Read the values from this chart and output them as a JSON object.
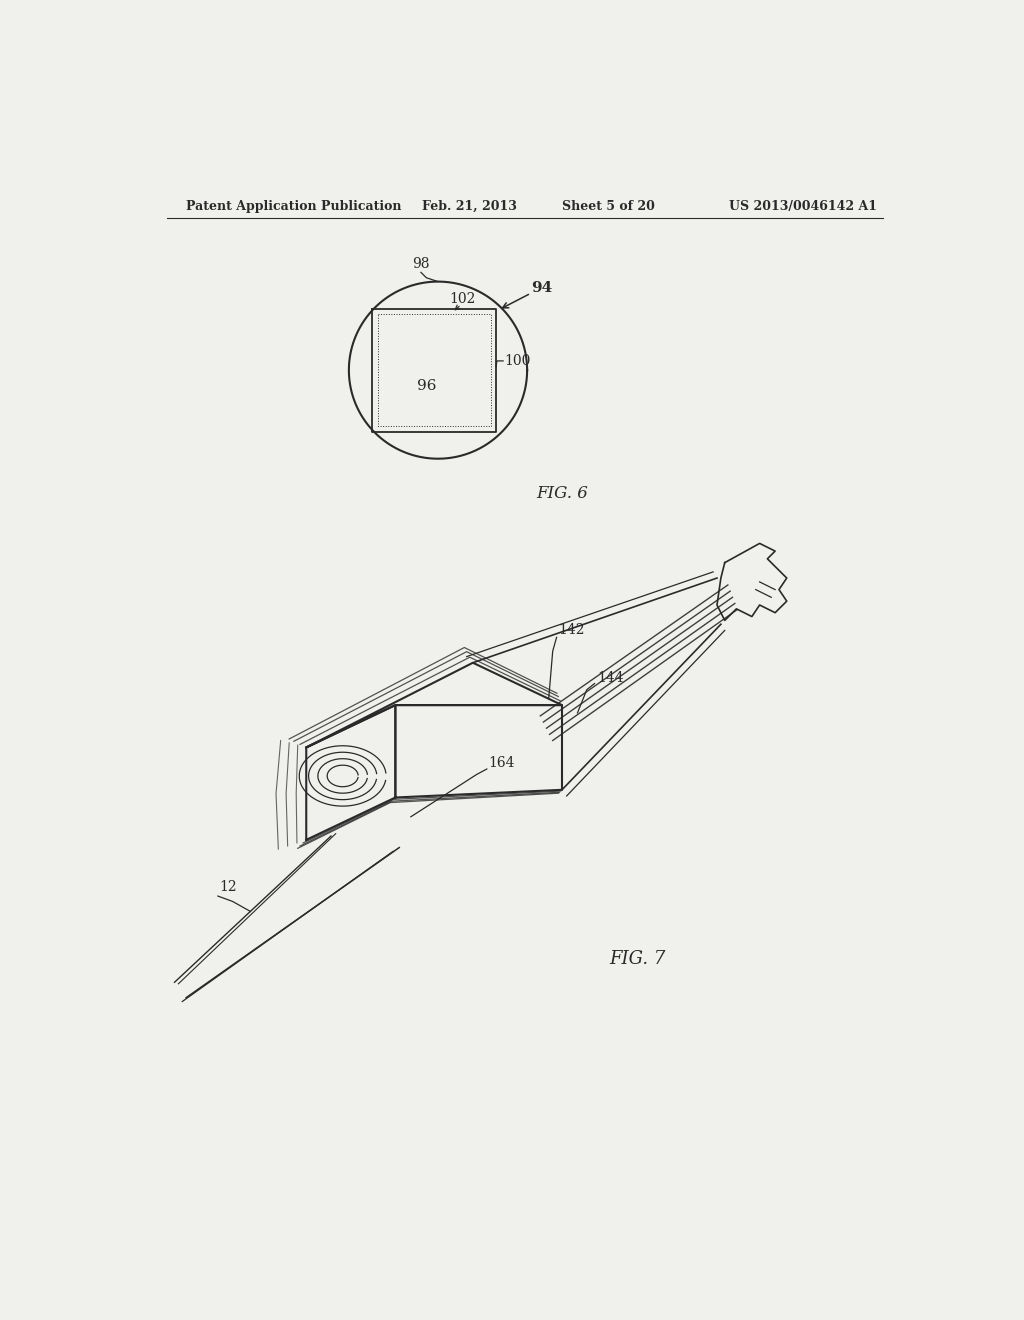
{
  "bg_color": "#f0f0ec",
  "line_color": "#2a2a2a",
  "header_text": "Patent Application Publication",
  "header_date": "Feb. 21, 2013",
  "header_sheet": "Sheet 5 of 20",
  "header_patent": "US 2013/0046142 A1",
  "fig6_label": "FIG. 6",
  "fig7_label": "FIG. 7"
}
